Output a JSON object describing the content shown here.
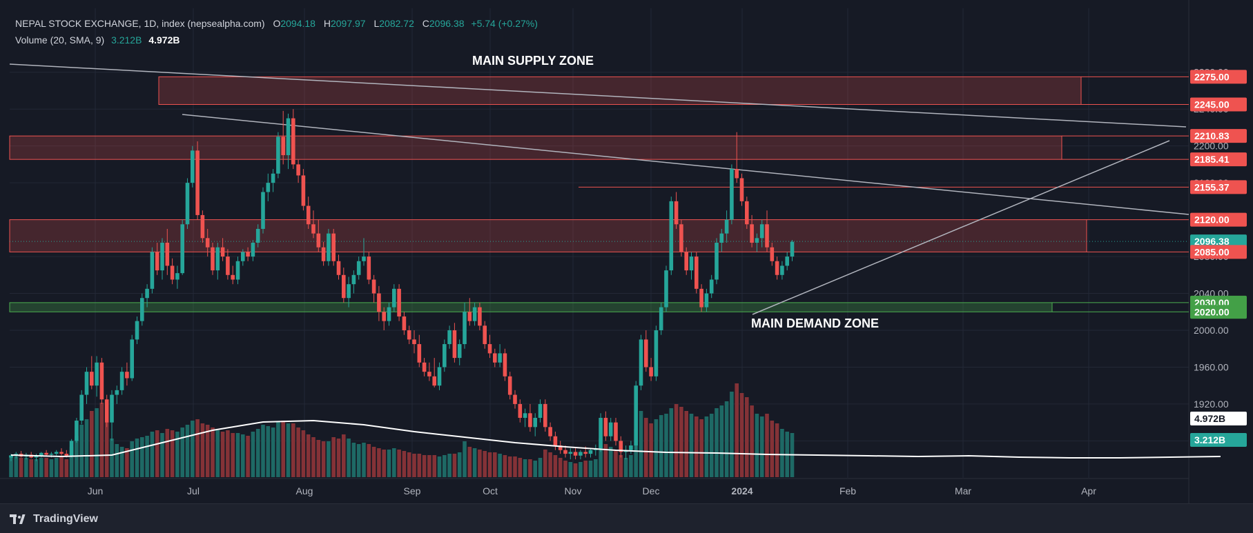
{
  "header": {
    "title": "NEPAL STOCK EXCHANGE, 1D, index (nepsealpha.com)",
    "open_label": "O",
    "open": "2094.18",
    "high_label": "H",
    "high": "2097.97",
    "low_label": "L",
    "low": "2082.72",
    "close_label": "C",
    "close": "2096.38",
    "change": "+5.74 (+0.27%)",
    "volume_label": "Volume (20, SMA, 9)",
    "volume_value": "3.212B",
    "volume_sma_value": "4.972B"
  },
  "footer": {
    "brand": "TradingView"
  },
  "colors": {
    "background": "#161a25",
    "up": "#26a69a",
    "down": "#ef5350",
    "supply_zone": "#ef5350",
    "demand_zone": "#4caf50",
    "trendline": "#b2b5be",
    "sma_line": "#ffffff"
  },
  "chart_data": {
    "type": "candlestick",
    "price_axis": {
      "ylim": [
        1850,
        2295
      ],
      "tick_labels": [
        "2280.00",
        "2240.00",
        "2200.00",
        "2160.00",
        "2120.00",
        "2080.00",
        "2040.00",
        "2000.00",
        "1960.00",
        "1920.00",
        "1880.00"
      ],
      "tick_values": [
        2280,
        2240,
        2200,
        2160,
        2120,
        2080,
        2040,
        2000,
        1960,
        1920,
        1880
      ]
    },
    "price_badges": [
      {
        "label": "2275.00",
        "value": 2275,
        "kind": "supply"
      },
      {
        "label": "2245.00",
        "value": 2245,
        "kind": "supply"
      },
      {
        "label": "2210.83",
        "value": 2210.83,
        "kind": "supply"
      },
      {
        "label": "2185.41",
        "value": 2185.41,
        "kind": "supply"
      },
      {
        "label": "2155.37",
        "value": 2155.37,
        "kind": "supply"
      },
      {
        "label": "2120.00",
        "value": 2120,
        "kind": "supply"
      },
      {
        "label": "2096.38",
        "value": 2096.38,
        "kind": "current"
      },
      {
        "label": "2085.00",
        "value": 2085,
        "kind": "supply"
      },
      {
        "label": "2030.00",
        "value": 2030,
        "kind": "demand"
      },
      {
        "label": "2020.00",
        "value": 2020,
        "kind": "demand"
      },
      {
        "label": "4.972B",
        "value": 1907,
        "kind": "volume-sma"
      },
      {
        "label": "3.212B",
        "value": 1876,
        "kind": "volume"
      }
    ],
    "time_axis": {
      "labels": [
        "Jun",
        "Jul",
        "Aug",
        "Sep",
        "Oct",
        "Nov",
        "Dec",
        "2024",
        "Jan_hidden",
        "Feb",
        "Mar",
        "Apr"
      ],
      "months": [
        {
          "label": "Jun",
          "x": 138,
          "bold": false
        },
        {
          "label": "Jul",
          "x": 280,
          "bold": false
        },
        {
          "label": "Aug",
          "x": 441,
          "bold": false
        },
        {
          "label": "Sep",
          "x": 597,
          "bold": false
        },
        {
          "label": "Oct",
          "x": 710,
          "bold": false
        },
        {
          "label": "Nov",
          "x": 830,
          "bold": false
        },
        {
          "label": "Dec",
          "x": 943,
          "bold": false
        },
        {
          "label": "2024",
          "x": 1075,
          "bold": true
        },
        {
          "label": "Feb",
          "x": 1228,
          "bold": false
        },
        {
          "label": "Mar",
          "x": 1395,
          "bold": false
        },
        {
          "label": "Apr",
          "x": 1577,
          "bold": false
        }
      ]
    },
    "zones": [
      {
        "name": "MAIN SUPPLY ZONE",
        "kind": "supply",
        "from": 2245,
        "to": 2275,
        "x_start_day": 46,
        "x_end_day": 225,
        "label": "MAIN SUPPLY ZONE"
      },
      {
        "name": "supply-2",
        "kind": "supply",
        "from": 2185.41,
        "to": 2210.83,
        "x_start_day": 0,
        "x_end_day": 220,
        "label": ""
      },
      {
        "name": "supply-3",
        "kind": "supply",
        "from": 2085,
        "to": 2120,
        "x_start_day": 0,
        "x_end_day": 225,
        "label": ""
      },
      {
        "name": "MAIN DEMAND ZONE",
        "kind": "demand",
        "from": 2020,
        "to": 2030,
        "x_start_day": 0,
        "x_end_day": 218,
        "label": "MAIN DEMAND ZONE"
      }
    ],
    "resistance_line": {
      "value": 2155.37,
      "from_day": 163
    },
    "trendlines": [
      {
        "from": [
          0,
          2264
        ],
        "to": [
          245,
          2198
        ]
      },
      {
        "from": [
          51,
          2211
        ],
        "to": [
          245,
          2116
        ]
      },
      {
        "from": [
          158,
          2017
        ],
        "to": [
          243,
          2189
        ]
      }
    ],
    "ohlc_encoding": "[open, high, low, close, volume_billion]",
    "candles": [
      [
        1862,
        1866,
        1858,
        1864,
        1.6
      ],
      [
        1864,
        1868,
        1861,
        1866,
        1.5
      ],
      [
        1866,
        1869,
        1862,
        1863,
        1.4
      ],
      [
        1863,
        1867,
        1860,
        1865,
        1.4
      ],
      [
        1865,
        1868,
        1861,
        1862,
        1.3
      ],
      [
        1862,
        1866,
        1858,
        1864,
        1.3
      ],
      [
        1864,
        1868,
        1862,
        1867,
        1.4
      ],
      [
        1867,
        1870,
        1863,
        1865,
        1.4
      ],
      [
        1865,
        1868,
        1862,
        1866,
        1.3
      ],
      [
        1866,
        1870,
        1864,
        1868,
        1.4
      ],
      [
        1868,
        1872,
        1864,
        1866,
        1.5
      ],
      [
        1866,
        1870,
        1862,
        1864,
        1.3
      ],
      [
        1864,
        1882,
        1862,
        1880,
        2.2
      ],
      [
        1880,
        1905,
        1878,
        1902,
        3.0
      ],
      [
        1902,
        1935,
        1898,
        1930,
        3.8
      ],
      [
        1930,
        1960,
        1920,
        1955,
        4.2
      ],
      [
        1955,
        1972,
        1936,
        1940,
        4.8
      ],
      [
        1940,
        1972,
        1928,
        1965,
        5.0
      ],
      [
        1965,
        1970,
        1920,
        1925,
        5.4
      ],
      [
        1925,
        1930,
        1895,
        1900,
        4.0
      ],
      [
        1900,
        1935,
        1880,
        1930,
        2.8
      ],
      [
        1930,
        1940,
        1920,
        1935,
        2.4
      ],
      [
        1935,
        1960,
        1930,
        1955,
        2.2
      ],
      [
        1955,
        1965,
        1940,
        1948,
        2.1
      ],
      [
        1948,
        1995,
        1945,
        1990,
        2.6
      ],
      [
        1990,
        2015,
        1985,
        2010,
        2.8
      ],
      [
        2010,
        2040,
        2005,
        2035,
        2.9
      ],
      [
        2035,
        2050,
        2025,
        2045,
        3.0
      ],
      [
        2045,
        2090,
        2040,
        2085,
        3.3
      ],
      [
        2085,
        2095,
        2060,
        2065,
        3.4
      ],
      [
        2065,
        2100,
        2055,
        2095,
        3.2
      ],
      [
        2095,
        2110,
        2060,
        2070,
        3.5
      ],
      [
        2070,
        2078,
        2050,
        2055,
        3.4
      ],
      [
        2055,
        2070,
        2045,
        2062,
        3.3
      ],
      [
        2062,
        2120,
        2060,
        2115,
        3.6
      ],
      [
        2115,
        2165,
        2110,
        2160,
        3.8
      ],
      [
        2160,
        2200,
        2155,
        2195,
        4.1
      ],
      [
        2195,
        2205,
        2120,
        2125,
        4.2
      ],
      [
        2125,
        2130,
        2095,
        2100,
        3.9
      ],
      [
        2100,
        2110,
        2080,
        2090,
        3.8
      ],
      [
        2090,
        2095,
        2060,
        2065,
        3.6
      ],
      [
        2065,
        2095,
        2055,
        2090,
        3.4
      ],
      [
        2090,
        2100,
        2075,
        2080,
        3.3
      ],
      [
        2080,
        2088,
        2055,
        2060,
        3.4
      ],
      [
        2060,
        2070,
        2050,
        2055,
        3.2
      ],
      [
        2055,
        2080,
        2050,
        2075,
        3.2
      ],
      [
        2075,
        2088,
        2070,
        2085,
        3.1
      ],
      [
        2085,
        2090,
        2075,
        2080,
        3.0
      ],
      [
        2080,
        2098,
        2075,
        2095,
        3.3
      ],
      [
        2095,
        2115,
        2090,
        2110,
        3.5
      ],
      [
        2110,
        2155,
        2105,
        2150,
        3.8
      ],
      [
        2150,
        2170,
        2140,
        2160,
        3.7
      ],
      [
        2160,
        2175,
        2150,
        2170,
        3.6
      ],
      [
        2170,
        2215,
        2165,
        2210,
        4.0
      ],
      [
        2210,
        2238,
        2180,
        2190,
        4.1
      ],
      [
        2190,
        2235,
        2175,
        2230,
        3.9
      ],
      [
        2230,
        2240,
        2175,
        2180,
        3.9
      ],
      [
        2180,
        2185,
        2160,
        2168,
        3.6
      ],
      [
        2168,
        2175,
        2130,
        2135,
        3.4
      ],
      [
        2135,
        2145,
        2110,
        2115,
        3.1
      ],
      [
        2115,
        2130,
        2100,
        2105,
        2.9
      ],
      [
        2105,
        2120,
        2085,
        2090,
        2.7
      ],
      [
        2090,
        2096,
        2070,
        2075,
        2.6
      ],
      [
        2075,
        2110,
        2070,
        2105,
        2.6
      ],
      [
        2105,
        2110,
        2070,
        2075,
        2.9
      ],
      [
        2075,
        2082,
        2055,
        2060,
        2.8
      ],
      [
        2060,
        2068,
        2030,
        2035,
        3.1
      ],
      [
        2035,
        2058,
        2025,
        2050,
        2.8
      ],
      [
        2050,
        2065,
        2040,
        2060,
        2.5
      ],
      [
        2060,
        2080,
        2055,
        2075,
        2.4
      ],
      [
        2075,
        2100,
        2070,
        2080,
        2.5
      ],
      [
        2080,
        2085,
        2050,
        2055,
        2.4
      ],
      [
        2055,
        2060,
        2030,
        2040,
        2.2
      ],
      [
        2040,
        2048,
        2010,
        2020,
        2.1
      ],
      [
        2020,
        2025,
        2000,
        2010,
        2.0
      ],
      [
        2010,
        2030,
        2005,
        2025,
        2.0
      ],
      [
        2025,
        2050,
        2020,
        2045,
        2.1
      ],
      [
        2045,
        2050,
        2010,
        2015,
        2.0
      ],
      [
        2015,
        2020,
        1995,
        2000,
        1.9
      ],
      [
        2000,
        2005,
        1985,
        1990,
        1.8
      ],
      [
        1990,
        2000,
        1975,
        1985,
        1.7
      ],
      [
        1985,
        1995,
        1960,
        1965,
        1.7
      ],
      [
        1965,
        1970,
        1950,
        1955,
        1.6
      ],
      [
        1955,
        1965,
        1945,
        1950,
        1.6
      ],
      [
        1950,
        1970,
        1938,
        1940,
        1.6
      ],
      [
        1940,
        1965,
        1935,
        1960,
        1.5
      ],
      [
        1960,
        1990,
        1955,
        1985,
        1.6
      ],
      [
        1985,
        2005,
        1980,
        2000,
        1.7
      ],
      [
        2000,
        2008,
        1965,
        1970,
        1.7
      ],
      [
        1970,
        1990,
        1962,
        1985,
        1.8
      ],
      [
        1985,
        2030,
        1980,
        2020,
        2.6
      ],
      [
        2020,
        2035,
        2005,
        2010,
        2.2
      ],
      [
        2010,
        2030,
        2005,
        2025,
        2.1
      ],
      [
        2025,
        2030,
        2000,
        2005,
        2.0
      ],
      [
        2005,
        2010,
        1980,
        1985,
        1.9
      ],
      [
        1985,
        1995,
        1970,
        1975,
        1.8
      ],
      [
        1975,
        1980,
        1960,
        1965,
        1.8
      ],
      [
        1965,
        1985,
        1960,
        1975,
        1.7
      ],
      [
        1975,
        1980,
        1945,
        1950,
        1.6
      ],
      [
        1950,
        1955,
        1925,
        1930,
        1.5
      ],
      [
        1930,
        1935,
        1915,
        1920,
        1.5
      ],
      [
        1920,
        1925,
        1900,
        1905,
        1.4
      ],
      [
        1905,
        1915,
        1895,
        1910,
        1.3
      ],
      [
        1910,
        1920,
        1890,
        1895,
        1.3
      ],
      [
        1895,
        1910,
        1885,
        1905,
        1.2
      ],
      [
        1905,
        1925,
        1900,
        1920,
        1.4
      ],
      [
        1920,
        1925,
        1890,
        1895,
        2.0
      ],
      [
        1895,
        1900,
        1880,
        1885,
        1.8
      ],
      [
        1885,
        1890,
        1870,
        1875,
        1.6
      ],
      [
        1875,
        1880,
        1866,
        1870,
        1.4
      ],
      [
        1870,
        1875,
        1862,
        1866,
        1.2
      ],
      [
        1866,
        1872,
        1860,
        1868,
        1.1
      ],
      [
        1868,
        1872,
        1860,
        1864,
        1.0
      ],
      [
        1864,
        1870,
        1860,
        1868,
        1.1
      ],
      [
        1868,
        1874,
        1862,
        1866,
        1.2
      ],
      [
        1866,
        1872,
        1862,
        1870,
        1.2
      ],
      [
        1870,
        1876,
        1864,
        1872,
        1.3
      ],
      [
        1872,
        1910,
        1868,
        1905,
        2.8
      ],
      [
        1905,
        1912,
        1880,
        1885,
        2.4
      ],
      [
        1885,
        1905,
        1880,
        1900,
        2.2
      ],
      [
        1900,
        1905,
        1875,
        1880,
        2.0
      ],
      [
        1880,
        1885,
        1862,
        1868,
        1.6
      ],
      [
        1868,
        1875,
        1860,
        1870,
        1.4
      ],
      [
        1870,
        1880,
        1866,
        1875,
        1.6
      ],
      [
        1875,
        1945,
        1870,
        1940,
        3.5
      ],
      [
        1940,
        1995,
        1935,
        1990,
        4.8
      ],
      [
        1990,
        2000,
        1955,
        1960,
        4.3
      ],
      [
        1960,
        1970,
        1945,
        1950,
        3.9
      ],
      [
        1950,
        2005,
        1945,
        2000,
        4.2
      ],
      [
        2000,
        2030,
        1995,
        2025,
        4.5
      ],
      [
        2025,
        2070,
        2020,
        2065,
        4.6
      ],
      [
        2065,
        2145,
        2060,
        2140,
        5.0
      ],
      [
        2140,
        2150,
        2110,
        2115,
        5.3
      ],
      [
        2115,
        2120,
        2080,
        2085,
        5.1
      ],
      [
        2085,
        2090,
        2060,
        2065,
        4.8
      ],
      [
        2065,
        2085,
        2055,
        2080,
        4.6
      ],
      [
        2080,
        2085,
        2040,
        2045,
        4.4
      ],
      [
        2045,
        2050,
        2020,
        2025,
        4.2
      ],
      [
        2025,
        2045,
        2020,
        2040,
        4.4
      ],
      [
        2040,
        2060,
        2035,
        2055,
        4.6
      ],
      [
        2055,
        2100,
        2050,
        2095,
        5.0
      ],
      [
        2095,
        2110,
        2085,
        2105,
        5.2
      ],
      [
        2105,
        2130,
        2095,
        2120,
        5.5
      ],
      [
        2120,
        2180,
        2115,
        2175,
        6.2
      ],
      [
        2175,
        2215,
        2160,
        2165,
        6.8
      ],
      [
        2165,
        2170,
        2135,
        2140,
        6.1
      ],
      [
        2140,
        2145,
        2110,
        2115,
        5.8
      ],
      [
        2115,
        2125,
        2090,
        2095,
        5.2
      ],
      [
        2095,
        2105,
        2085,
        2100,
        4.6
      ],
      [
        2100,
        2120,
        2090,
        2115,
        4.4
      ],
      [
        2115,
        2130,
        2085,
        2090,
        4.6
      ],
      [
        2090,
        2095,
        2070,
        2075,
        4.1
      ],
      [
        2075,
        2080,
        2055,
        2060,
        3.9
      ],
      [
        2060,
        2075,
        2055,
        2070,
        3.5
      ],
      [
        2070,
        2085,
        2065,
        2080,
        3.3
      ],
      [
        2080,
        2098,
        2075,
        2096,
        3.2
      ]
    ],
    "volume_sma": [
      [
        0,
        1.6
      ],
      [
        10,
        1.5
      ],
      [
        20,
        1.6
      ],
      [
        30,
        2.5
      ],
      [
        40,
        3.4
      ],
      [
        50,
        4.0
      ],
      [
        60,
        4.1
      ],
      [
        70,
        3.8
      ],
      [
        80,
        3.3
      ],
      [
        90,
        2.9
      ],
      [
        100,
        2.5
      ],
      [
        110,
        2.2
      ],
      [
        120,
        1.95
      ],
      [
        130,
        1.8
      ],
      [
        140,
        1.75
      ],
      [
        150,
        1.65
      ],
      [
        160,
        1.6
      ],
      [
        170,
        1.55
      ],
      [
        180,
        1.5
      ],
      [
        190,
        1.55
      ],
      [
        200,
        1.45
      ],
      [
        210,
        1.4
      ],
      [
        220,
        1.4
      ],
      [
        230,
        1.45
      ],
      [
        240,
        1.5
      ]
    ]
  }
}
